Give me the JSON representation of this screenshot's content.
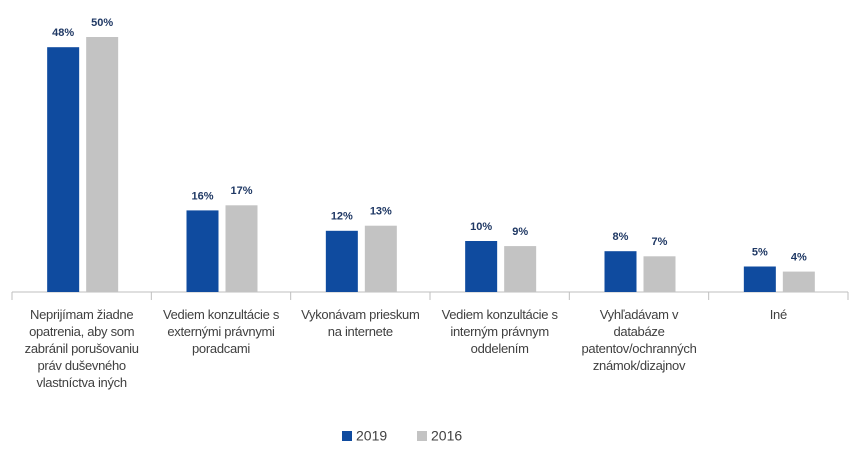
{
  "chart_data": {
    "type": "bar",
    "categories": [
      "Neprijímam žiadne opatrenia, aby som zabránil porušovaniu práv duševného vlastníctva iných",
      "Vediem konzultácie s externými právnymi poradcami",
      "Vykonávam prieskum na internete",
      "Vediem konzultácie s interným právnym oddelením",
      "Vyhľadávam v databáze patentov/ochranných známok/dizajnov",
      "Iné"
    ],
    "series": [
      {
        "name": "2019",
        "color": "#0f4b9f",
        "values": [
          48,
          16,
          12,
          10,
          8,
          5
        ],
        "value_labels": [
          "48%",
          "16%",
          "12%",
          "10%",
          "8%",
          "5%"
        ]
      },
      {
        "name": "2016",
        "color": "#c3c3c3",
        "values": [
          50,
          17,
          13,
          9,
          7,
          4
        ],
        "value_labels": [
          "50%",
          "17%",
          "13%",
          "9%",
          "7%",
          "4%"
        ]
      }
    ],
    "legend": "bottom"
  }
}
